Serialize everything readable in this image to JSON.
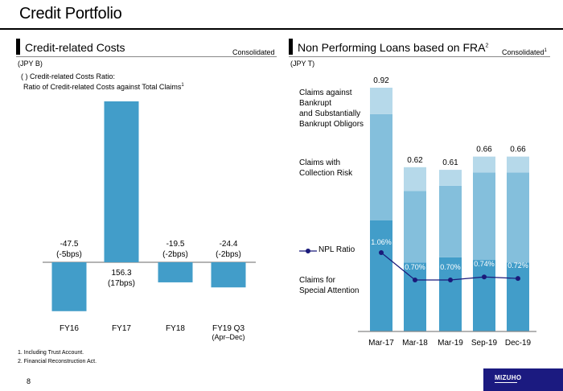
{
  "page": {
    "title": "Credit Portfolio",
    "page_number": "8",
    "logo_text": "MIZUHO",
    "footnotes": [
      "1. Including Trust Account.",
      "2. Financial Reconstruction Act."
    ]
  },
  "left_section": {
    "title": "Credit-related Costs",
    "scope": "Consolidated",
    "unit": "(JPY B)",
    "note_line1": "( ) Credit-related Costs Ratio:",
    "note_line2": "Ratio of Credit-related Costs against Total Claims",
    "note_sup": "1"
  },
  "right_section": {
    "title": "Non Performing Loans based on FRA",
    "title_sup": "2",
    "scope": "Consolidated",
    "scope_sup": "1",
    "unit": "(JPY T)",
    "legend": {
      "bankrupt": [
        "Claims against",
        "Bankrupt",
        "and Substantially",
        "Bankrupt Obligors"
      ],
      "collection": [
        "Claims with",
        "Collection Risk"
      ],
      "npl_ratio": "NPL Ratio",
      "special": [
        "Claims for",
        "Special Attention"
      ]
    }
  },
  "colors": {
    "bar": "#429dc9",
    "special": "#429dc9",
    "collection": "#84bfdc",
    "bankrupt": "#b6d9ea",
    "line": "#1a1a7a",
    "axis": "#888888",
    "logo": "#1b1a80"
  },
  "chart_data": [
    {
      "type": "bar",
      "title": "Credit-related Costs",
      "ylabel": "JPY B",
      "categories": [
        "FY16",
        "FY17",
        "FY18",
        "FY19 Q3"
      ],
      "category_sublabels": [
        "",
        "",
        "",
        "(Apr–Dec)"
      ],
      "values": [
        -47.5,
        156.3,
        -19.5,
        -24.4
      ],
      "value_labels": [
        "-47.5",
        "156.3",
        "-19.5",
        "-24.4"
      ],
      "ratio_labels": [
        "(-5bps)",
        "(17bps)",
        "(-2bps)",
        "(-2bps)"
      ],
      "ylim": [
        -60,
        160
      ],
      "grid": false
    },
    {
      "type": "bar",
      "stacked": true,
      "title": "Non Performing Loans based on FRA",
      "ylabel": "JPY T",
      "categories": [
        "Mar-17",
        "Mar-18",
        "Mar-19",
        "Sep-19",
        "Dec-19"
      ],
      "series": [
        {
          "name": "Claims for Special Attention",
          "values": [
            0.42,
            0.26,
            0.28,
            0.27,
            0.26
          ]
        },
        {
          "name": "Claims with Collection Risk",
          "values": [
            0.4,
            0.27,
            0.27,
            0.33,
            0.34
          ]
        },
        {
          "name": "Claims against Bankrupt and Substantially Bankrupt Obligors",
          "values": [
            0.1,
            0.09,
            0.06,
            0.06,
            0.06
          ]
        }
      ],
      "totals": [
        0.92,
        0.62,
        0.61,
        0.66,
        0.66
      ],
      "total_labels": [
        "0.92",
        "0.62",
        "0.61",
        "0.66",
        "0.66"
      ],
      "line_series": {
        "name": "NPL Ratio",
        "values": [
          1.06,
          0.7,
          0.7,
          0.74,
          0.72
        ],
        "labels": [
          "1.06%",
          "0.70%",
          "0.70%",
          "0.74%",
          "0.72%"
        ]
      },
      "ylim": [
        0,
        0.92
      ],
      "grid": false,
      "legend": "left"
    }
  ]
}
